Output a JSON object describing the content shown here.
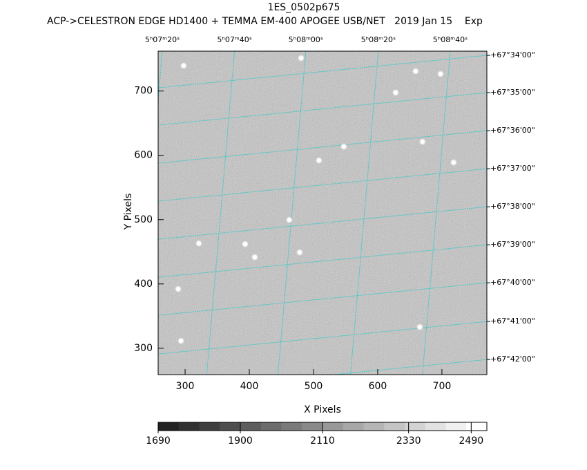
{
  "chart_data": {
    "type": "image",
    "title": "1ES_0502p675",
    "subtitle": "ACP->CELESTRON EDGE HD1400 + TEMMA EM-400 APOGEE USB/NET   2019 Jan 15    Exp",
    "xlabel": "X Pixels",
    "ylabel": "Y Pixels",
    "xlim": [
      258,
      770
    ],
    "ylim": [
      259,
      762
    ],
    "xticks": [
      300,
      400,
      500,
      600,
      700
    ],
    "yticks": [
      300,
      400,
      500,
      600,
      700
    ],
    "top_ticks": [
      {
        "value": 264.5,
        "label": "5ʰ07ᵐ20ˢ"
      },
      {
        "value": 377,
        "label": "5ʰ07ᵐ40ˢ"
      },
      {
        "value": 488,
        "label": "5ʰ08ᵐ00ˢ"
      },
      {
        "value": 601,
        "label": "5ʰ08ᵐ20ˢ"
      },
      {
        "value": 713,
        "label": "5ʰ08ᵐ40ˢ"
      }
    ],
    "right_ticks": [
      {
        "value": 755.5,
        "label": "+67°34'00\""
      },
      {
        "value": 697.5,
        "label": "+67°35'00\""
      },
      {
        "value": 638.3,
        "label": "+67°36'00\""
      },
      {
        "value": 579.2,
        "label": "+67°37'00\""
      },
      {
        "value": 520,
        "label": "+67°38'00\""
      },
      {
        "value": 460.9,
        "label": "+67°39'00\""
      },
      {
        "value": 401.8,
        "label": "+67°40'00\""
      },
      {
        "value": 341.6,
        "label": "+67°41'00\""
      },
      {
        "value": 282.5,
        "label": "+67°42'00\""
      }
    ],
    "grid_color": "#3fc8c8",
    "stars": {
      "x": [
        297.8,
        480.6,
        627.9,
        659,
        697.8,
        547.2,
        508.5,
        718.2,
        669.8,
        462.3,
        408.5,
        289.2,
        478.4,
        665.5,
        293.5,
        393.5,
        321.4
      ],
      "y": [
        739.4,
        751.2,
        697.5,
        730.8,
        726.5,
        613.6,
        592.1,
        588.9,
        621.1,
        499.6,
        441.6,
        392.1,
        449.1,
        333,
        311.5,
        462,
        463
      ]
    },
    "colorbar": {
      "clim": [
        1690,
        2530
      ],
      "ticks": [
        1690,
        1900,
        2110,
        2330,
        2490
      ]
    }
  }
}
